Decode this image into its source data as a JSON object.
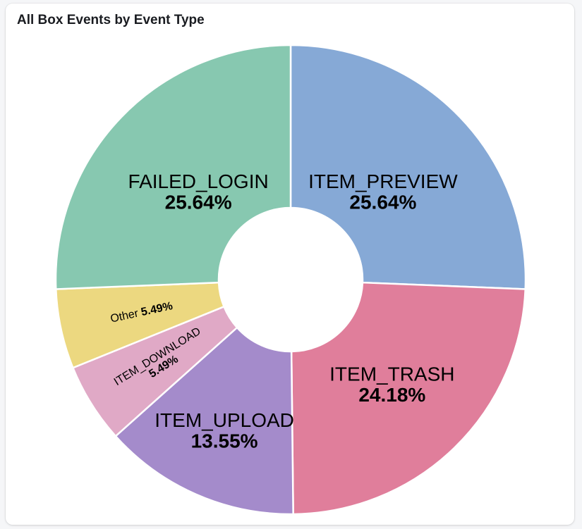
{
  "panel": {
    "title": "All Box Events by Event Type"
  },
  "chart_data": {
    "type": "pie",
    "donut": true,
    "title": "All Box Events by Event Type",
    "slices": [
      {
        "label": "ITEM_PREVIEW",
        "percent": "25.64%",
        "value": 25.64,
        "color": "#86a9d6"
      },
      {
        "label": "ITEM_TRASH",
        "percent": "24.18%",
        "value": 24.18,
        "color": "#e07e9b"
      },
      {
        "label": "ITEM_UPLOAD",
        "percent": "13.55%",
        "value": 13.55,
        "color": "#a48bcb"
      },
      {
        "label": "ITEM_DOWNLOAD",
        "percent": "5.49%",
        "value": 5.49,
        "color": "#e0a9c6"
      },
      {
        "label": "Other",
        "percent": "5.49%",
        "value": 5.49,
        "color": "#ecd880"
      },
      {
        "label": "FAILED_LOGIN",
        "percent": "25.64%",
        "value": 25.64,
        "color": "#87c8b0"
      }
    ]
  }
}
